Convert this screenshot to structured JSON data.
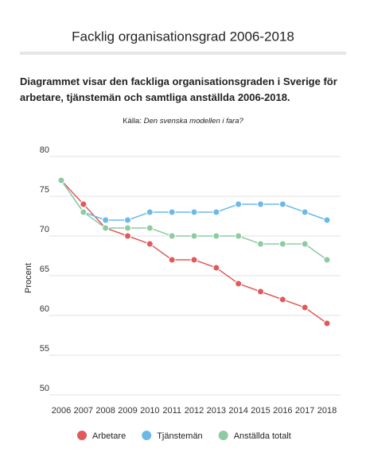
{
  "chart_data": {
    "type": "line",
    "title": "Facklig organisationsgrad 2006-2018",
    "description": "Diagrammet visar den fackliga organisationsgraden i Sverige för arbetare, tjänstemän och samtliga anställda 2006-2018.",
    "source_label": "Källa:",
    "source": "Den svenska modellen i fara?",
    "y_label": "Procent",
    "categories": [
      "2006",
      "2007",
      "2008",
      "2009",
      "2010",
      "2011",
      "2012",
      "2013",
      "2014",
      "2015",
      "2016",
      "2017",
      "2018"
    ],
    "series": [
      {
        "name": "Arbetare",
        "color": "#e05a5a",
        "values": [
          77,
          74,
          71,
          70,
          69,
          67,
          67,
          66,
          64,
          63,
          62,
          61,
          59
        ]
      },
      {
        "name": "Tjänstemän",
        "color": "#6cb9e8",
        "values": [
          77,
          73,
          72,
          72,
          73,
          73,
          73,
          73,
          74,
          74,
          74,
          73,
          72
        ]
      },
      {
        "name": "Anställda totalt",
        "color": "#8ecaa2",
        "values": [
          77,
          73,
          71,
          71,
          71,
          70,
          70,
          70,
          70,
          69,
          69,
          69,
          67
        ]
      }
    ],
    "ylim": [
      50,
      80
    ],
    "yticks": [
      50,
      55,
      60,
      65,
      70,
      75,
      80
    ],
    "grid": true
  }
}
